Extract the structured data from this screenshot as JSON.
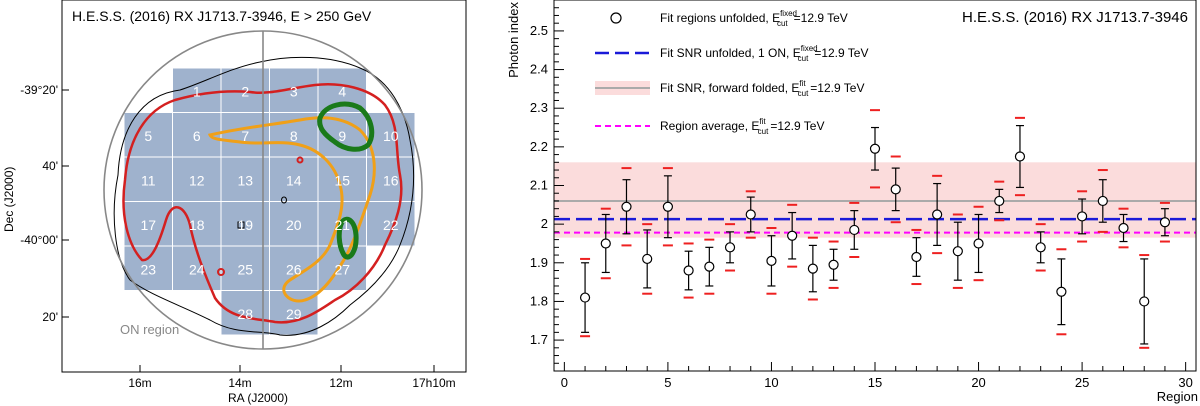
{
  "chart_data": [
    {
      "type": "diagram",
      "title": "H.E.S.S. (2016) RX J1713.7-3946, E > 250 GeV",
      "xlabel": "RA (J2000)",
      "ylabel": "Dec (J2000)",
      "x_ticks": [
        "16m",
        "14m",
        "12m",
        "17h10m"
      ],
      "y_ticks": [
        "-39°20'",
        "40'",
        "-40°00'",
        "20'"
      ],
      "on_region_label": "ON region",
      "regions": [
        {
          "id": 1,
          "row": 0,
          "col": 1,
          "label": "1"
        },
        {
          "id": 2,
          "row": 0,
          "col": 2,
          "label": "2"
        },
        {
          "id": 3,
          "row": 0,
          "col": 3,
          "label": "3"
        },
        {
          "id": 4,
          "row": 0,
          "col": 4,
          "label": "4"
        },
        {
          "id": 5,
          "row": 1,
          "col": 0,
          "label": "5"
        },
        {
          "id": 6,
          "row": 1,
          "col": 1,
          "label": "6"
        },
        {
          "id": 7,
          "row": 1,
          "col": 2,
          "label": "7"
        },
        {
          "id": 8,
          "row": 1,
          "col": 3,
          "label": "8"
        },
        {
          "id": 9,
          "row": 1,
          "col": 4,
          "label": "9"
        },
        {
          "id": 10,
          "row": 1,
          "col": 5,
          "label": "10"
        },
        {
          "id": 11,
          "row": 2,
          "col": 0,
          "label": "11"
        },
        {
          "id": 12,
          "row": 2,
          "col": 1,
          "label": "12"
        },
        {
          "id": 13,
          "row": 2,
          "col": 2,
          "label": "13"
        },
        {
          "id": 14,
          "row": 2,
          "col": 3,
          "label": "14"
        },
        {
          "id": 15,
          "row": 2,
          "col": 4,
          "label": "15"
        },
        {
          "id": 16,
          "row": 2,
          "col": 5,
          "label": "16"
        },
        {
          "id": 17,
          "row": 3,
          "col": 0,
          "label": "17"
        },
        {
          "id": 18,
          "row": 3,
          "col": 1,
          "label": "18"
        },
        {
          "id": 19,
          "row": 3,
          "col": 2,
          "label": "19"
        },
        {
          "id": 20,
          "row": 3,
          "col": 3,
          "label": "20"
        },
        {
          "id": 21,
          "row": 3,
          "col": 4,
          "label": "21"
        },
        {
          "id": 22,
          "row": 3,
          "col": 5,
          "label": "22"
        },
        {
          "id": 23,
          "row": 4,
          "col": 0,
          "label": "23"
        },
        {
          "id": 24,
          "row": 4,
          "col": 1,
          "label": "24"
        },
        {
          "id": 25,
          "row": 4,
          "col": 2,
          "label": "25"
        },
        {
          "id": 26,
          "row": 4,
          "col": 3,
          "label": "26"
        },
        {
          "id": 27,
          "row": 4,
          "col": 4,
          "label": "27"
        },
        {
          "id": 28,
          "row": 5,
          "col": 2,
          "label": "28"
        },
        {
          "id": 29,
          "row": 5,
          "col": 3,
          "label": "29"
        }
      ],
      "colors": {
        "grid_fill": "#9fb2cd",
        "grid_line": "#ffffff",
        "red": "#d42020",
        "orange": "#f0a018",
        "green": "#1a7a1a",
        "black": "#000000",
        "circle": "#888888"
      }
    },
    {
      "type": "scatter",
      "title": "H.E.S.S. (2016) RX J1713.7-3946",
      "xlabel": "Region",
      "ylabel": "Photon index",
      "xlim": [
        -0.5,
        30.5
      ],
      "ylim": [
        1.62,
        2.58
      ],
      "x_ticks": [
        0,
        5,
        10,
        15,
        20,
        25,
        30
      ],
      "y_ticks": [
        1.7,
        1.8,
        1.9,
        2,
        2.1,
        2.2,
        2.3,
        2.4,
        2.5
      ],
      "legend": [
        {
          "text": "Fit regions unfolded, E",
          "sup": "fixed",
          "sub": "cut",
          "suffix": "=12.9 TeV"
        },
        {
          "text": "Fit SNR unfolded, 1 ON, E",
          "sup": "fixed",
          "sub": "cut",
          "suffix": "=12.9 TeV"
        },
        {
          "text": "Fit SNR, forward folded, E",
          "sup": "fit",
          "sub": "cut",
          "suffix": "=12.9 TeV"
        },
        {
          "text": "Region average, E",
          "sup": "fit",
          "sub": "cut",
          "suffix": "=12.9 TeV"
        }
      ],
      "legend_position": "top-left",
      "points": [
        {
          "x": 1,
          "y": 1.81,
          "err": 0.09,
          "sys": 0.1
        },
        {
          "x": 2,
          "y": 1.95,
          "err": 0.075,
          "sys": 0.09
        },
        {
          "x": 3,
          "y": 2.045,
          "err": 0.07,
          "sys": 0.1
        },
        {
          "x": 4,
          "y": 1.91,
          "err": 0.075,
          "sys": 0.09
        },
        {
          "x": 5,
          "y": 2.045,
          "err": 0.08,
          "sys": 0.1
        },
        {
          "x": 6,
          "y": 1.88,
          "err": 0.05,
          "sys": 0.07
        },
        {
          "x": 7,
          "y": 1.89,
          "err": 0.05,
          "sys": 0.07
        },
        {
          "x": 8,
          "y": 1.94,
          "err": 0.04,
          "sys": 0.06
        },
        {
          "x": 9,
          "y": 2.025,
          "err": 0.045,
          "sys": 0.06
        },
        {
          "x": 10,
          "y": 1.905,
          "err": 0.065,
          "sys": 0.085
        },
        {
          "x": 11,
          "y": 1.97,
          "err": 0.06,
          "sys": 0.08
        },
        {
          "x": 12,
          "y": 1.885,
          "err": 0.06,
          "sys": 0.08
        },
        {
          "x": 13,
          "y": 1.895,
          "err": 0.04,
          "sys": 0.06
        },
        {
          "x": 14,
          "y": 1.985,
          "err": 0.05,
          "sys": 0.07
        },
        {
          "x": 15,
          "y": 2.195,
          "err": 0.055,
          "sys": 0.1
        },
        {
          "x": 16,
          "y": 2.09,
          "err": 0.055,
          "sys": 0.085
        },
        {
          "x": 17,
          "y": 1.915,
          "err": 0.05,
          "sys": 0.07
        },
        {
          "x": 18,
          "y": 2.025,
          "err": 0.08,
          "sys": 0.1
        },
        {
          "x": 19,
          "y": 1.93,
          "err": 0.075,
          "sys": 0.095
        },
        {
          "x": 20,
          "y": 1.95,
          "err": 0.075,
          "sys": 0.095
        },
        {
          "x": 21,
          "y": 2.06,
          "err": 0.03,
          "sys": 0.05
        },
        {
          "x": 22,
          "y": 2.175,
          "err": 0.08,
          "sys": 0.1
        },
        {
          "x": 23,
          "y": 1.94,
          "err": 0.04,
          "sys": 0.06
        },
        {
          "x": 24,
          "y": 1.825,
          "err": 0.085,
          "sys": 0.11
        },
        {
          "x": 25,
          "y": 2.02,
          "err": 0.045,
          "sys": 0.065
        },
        {
          "x": 26,
          "y": 2.06,
          "err": 0.055,
          "sys": 0.08
        },
        {
          "x": 27,
          "y": 1.99,
          "err": 0.035,
          "sys": 0.05
        },
        {
          "x": 28,
          "y": 1.8,
          "err": 0.11,
          "sys": 0.12
        },
        {
          "x": 29,
          "y": 2.005,
          "err": 0.035,
          "sys": 0.05
        }
      ],
      "snr_unfolded": 2.013,
      "snr_forward_folded": {
        "value": 2.06,
        "band": [
          1.965,
          2.16
        ]
      },
      "region_average": 1.978,
      "colors": {
        "snr_unfolded": "#1a1ad8",
        "snr_forward_folded": "#aaaaaa",
        "band": "#fbdcdc",
        "region_average": "#ff00ff",
        "sys": "#ee2020",
        "points": "#000000"
      }
    }
  ]
}
